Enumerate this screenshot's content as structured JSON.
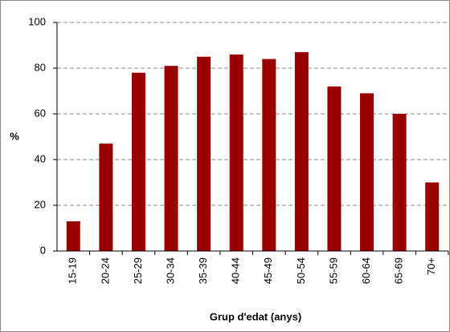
{
  "chart_data": {
    "type": "bar",
    "y_label": "%",
    "x_label": "Grup d'edat (anys)",
    "categories": [
      "15-19",
      "20-24",
      "25-29",
      "30-34",
      "35-39",
      "40-44",
      "45-49",
      "50-54",
      "55-59",
      "60-64",
      "65-69",
      "70+"
    ],
    "values": [
      13,
      47,
      78,
      81,
      85,
      86,
      84,
      87,
      72,
      69,
      60,
      30
    ],
    "color": "#9b0000",
    "ylim": [
      0,
      100
    ],
    "yticks": [
      0,
      20,
      40,
      60,
      80,
      100
    ],
    "grid": true
  }
}
